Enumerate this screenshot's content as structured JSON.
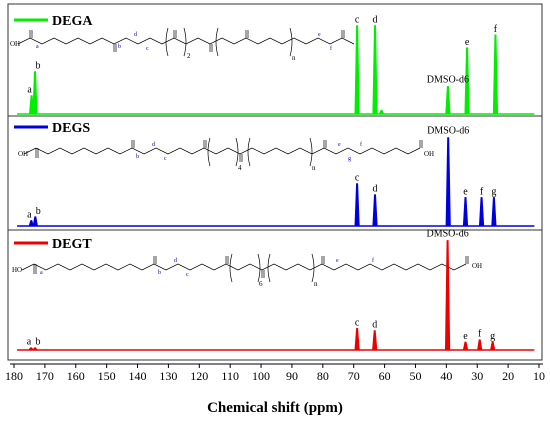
{
  "chart_data": {
    "type": "line",
    "xlabel": "Chemical shift (ppm)",
    "xlim": [
      180,
      10
    ],
    "xticks": [
      180,
      170,
      160,
      150,
      140,
      130,
      120,
      110,
      100,
      90,
      80,
      70,
      60,
      50,
      40,
      30,
      20,
      10
    ],
    "panels": [
      {
        "name": "DEGA",
        "color": "#00ee00",
        "peaks": [
          {
            "x": 174.3,
            "h": 0.2,
            "label": "a"
          },
          {
            "x": 173.2,
            "h": 0.46,
            "label": "b"
          },
          {
            "x": 68.9,
            "h": 0.96,
            "label": "c"
          },
          {
            "x": 63.1,
            "h": 0.96,
            "label": "d"
          },
          {
            "x": 61.0,
            "h": 0.04,
            "label": ""
          },
          {
            "x": 39.5,
            "h": 0.3,
            "label": ""
          },
          {
            "x": 33.3,
            "h": 0.72,
            "label": "e"
          },
          {
            "x": 24.1,
            "h": 0.86,
            "label": "f"
          }
        ],
        "solvent_label": "DMSO-d6",
        "solvent_x": 39.5
      },
      {
        "name": "DEGS",
        "color": "#0000dd",
        "peaks": [
          {
            "x": 174.4,
            "h": 0.06,
            "label": "a"
          },
          {
            "x": 173.1,
            "h": 0.1,
            "label": "b"
          },
          {
            "x": 68.9,
            "h": 0.46,
            "label": "c"
          },
          {
            "x": 63.1,
            "h": 0.34,
            "label": "d"
          },
          {
            "x": 39.4,
            "h": 0.96,
            "label": ""
          },
          {
            "x": 33.8,
            "h": 0.31,
            "label": "e"
          },
          {
            "x": 28.6,
            "h": 0.31,
            "label": "f"
          },
          {
            "x": 24.6,
            "h": 0.31,
            "label": "g"
          }
        ],
        "solvent_label": "DMSO-d6",
        "solvent_x": 39.4
      },
      {
        "name": "DEGT",
        "color": "#ee0000",
        "peaks": [
          {
            "x": 174.5,
            "h": 0.02,
            "label": "a"
          },
          {
            "x": 173.2,
            "h": 0.02,
            "label": "b"
          },
          {
            "x": 68.9,
            "h": 0.19,
            "label": "c"
          },
          {
            "x": 63.2,
            "h": 0.17,
            "label": "d"
          },
          {
            "x": 39.6,
            "h": 0.96,
            "label": ""
          },
          {
            "x": 33.8,
            "h": 0.07,
            "label": "e"
          },
          {
            "x": 29.2,
            "h": 0.09,
            "label": "f"
          },
          {
            "x": 25.0,
            "h": 0.07,
            "label": "g"
          }
        ],
        "solvent_label": "DMSO-d6",
        "solvent_x": 39.6
      }
    ]
  },
  "structures": {
    "DEGA": {
      "oh": "OH",
      "sub_n": "n",
      "sub_2": "2",
      "idx": [
        "a",
        "b",
        "d",
        "c",
        "e",
        "f"
      ]
    },
    "DEGS": {
      "oh": "OH",
      "sub_n": "n",
      "sub_4": "4",
      "idx": [
        "b",
        "d",
        "c",
        "e",
        "g",
        "f"
      ]
    },
    "DEGT": {
      "ho": "HO",
      "oh": "OH",
      "sub_n": "n",
      "sub_6": "6",
      "idx": [
        "a",
        "b",
        "d",
        "c",
        "e",
        "f"
      ]
    }
  }
}
